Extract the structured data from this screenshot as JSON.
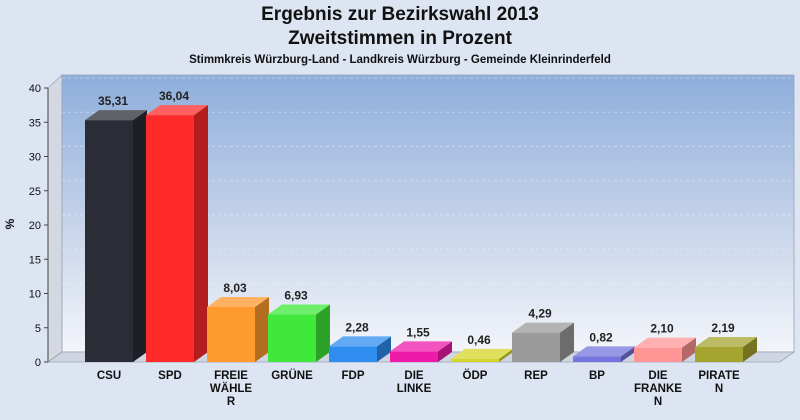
{
  "chart_data": {
    "type": "bar",
    "title": "Ergebnis zur Bezirkswahl 2013",
    "subtitle": "Zweitstimmen in Prozent",
    "caption": "Stimmkreis Würzburg-Land - Landkreis Würzburg - Gemeinde Kleinrinderfeld",
    "ylabel": "%",
    "xlabel": "",
    "ylim": [
      0,
      40
    ],
    "yticks": [
      0,
      5,
      10,
      15,
      20,
      25,
      30,
      35,
      40
    ],
    "grid": true,
    "categories": [
      [
        "CSU"
      ],
      [
        "SPD"
      ],
      [
        "FREIE",
        "WÄHLE",
        "R"
      ],
      [
        "GRÜNE"
      ],
      [
        "FDP"
      ],
      [
        "DIE",
        "LINKE"
      ],
      [
        "ÖDP"
      ],
      [
        "REP"
      ],
      [
        "BP"
      ],
      [
        "DIE",
        "FRANKE",
        "N"
      ],
      [
        "PIRATE",
        "N"
      ]
    ],
    "values": [
      35.31,
      36.04,
      8.03,
      6.93,
      2.28,
      1.55,
      0.46,
      4.29,
      0.82,
      2.1,
      2.19
    ],
    "value_labels": [
      "35,31",
      "36,04",
      "8,03",
      "6,93",
      "2,28",
      "1,55",
      "0,46",
      "4,29",
      "0,82",
      "2,10",
      "2,19"
    ],
    "colors": [
      "#2b2d36",
      "#ff2a2a",
      "#ff9a2e",
      "#3fe83a",
      "#2f8df0",
      "#ee1aa8",
      "#d6d62a",
      "#9a9a9a",
      "#7575dd",
      "#ff9595",
      "#a4a42f"
    ]
  }
}
